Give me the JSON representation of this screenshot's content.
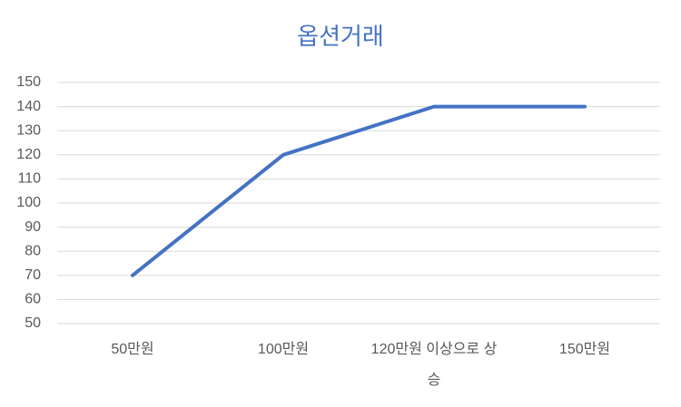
{
  "chart_data": {
    "type": "line",
    "title": "옵션거래",
    "categories": [
      "50만원",
      "100만원",
      "120만원 이상으로 상승",
      "150만원"
    ],
    "values": [
      70,
      120,
      140,
      140
    ],
    "color": "#4472c4",
    "ylim": [
      50,
      150
    ],
    "yticks": [
      50,
      60,
      70,
      80,
      90,
      100,
      110,
      120,
      130,
      140,
      150
    ],
    "grid": true
  }
}
